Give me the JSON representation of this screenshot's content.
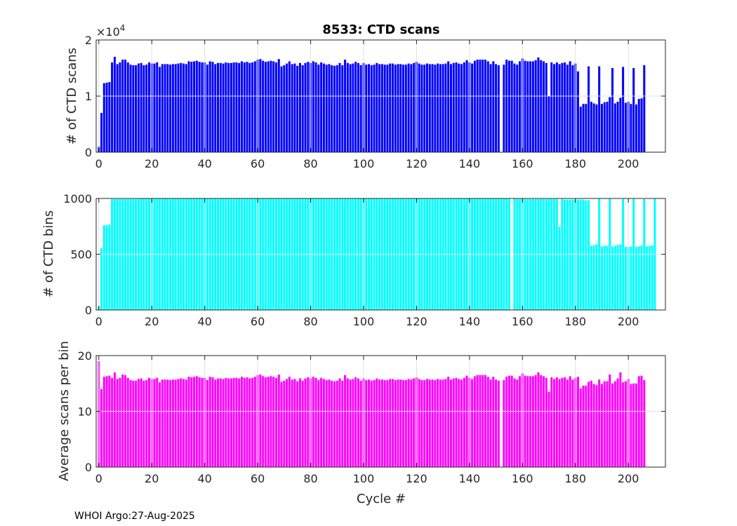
{
  "footer": "WHOI Argo:27-Aug-2025",
  "colors": {
    "axis": "#262626",
    "grid": "#e0e0e0"
  },
  "chart_data": [
    {
      "type": "bar",
      "title": "8533: CTD scans",
      "xlabel": "",
      "ylabel": "# of CTD scans",
      "exponent_label": "×10",
      "exponent_power": "4",
      "color": "#0000ff",
      "xlim": [
        -1,
        214
      ],
      "ylim": [
        0,
        2
      ],
      "xticks": [
        0,
        20,
        40,
        60,
        80,
        100,
        120,
        140,
        160,
        180,
        200
      ],
      "yticks": [
        0,
        1,
        2
      ],
      "grid": true,
      "x_start": 0,
      "values": [
        0.1,
        0.7,
        1.23,
        1.24,
        1.25,
        1.6,
        1.7,
        1.57,
        1.6,
        1.65,
        1.65,
        1.6,
        1.56,
        1.55,
        1.55,
        1.58,
        1.59,
        1.55,
        1.56,
        1.6,
        1.58,
        1.58,
        1.6,
        1.52,
        1.57,
        1.57,
        1.57,
        1.56,
        1.57,
        1.57,
        1.58,
        1.59,
        1.58,
        1.57,
        1.62,
        1.61,
        1.62,
        1.63,
        1.61,
        1.6,
        1.6,
        1.56,
        1.62,
        1.61,
        1.57,
        1.59,
        1.59,
        1.58,
        1.6,
        1.59,
        1.59,
        1.6,
        1.6,
        1.59,
        1.62,
        1.6,
        1.61,
        1.59,
        1.6,
        1.62,
        1.65,
        1.66,
        1.63,
        1.61,
        1.62,
        1.63,
        1.62,
        1.6,
        1.66,
        1.53,
        1.55,
        1.58,
        1.62,
        1.57,
        1.58,
        1.54,
        1.59,
        1.55,
        1.59,
        1.61,
        1.59,
        1.62,
        1.6,
        1.56,
        1.6,
        1.58,
        1.56,
        1.57,
        1.55,
        1.54,
        1.55,
        1.59,
        1.55,
        1.65,
        1.59,
        1.57,
        1.58,
        1.61,
        1.59,
        1.55,
        1.59,
        1.56,
        1.57,
        1.55,
        1.56,
        1.59,
        1.57,
        1.57,
        1.56,
        1.56,
        1.58,
        1.58,
        1.56,
        1.57,
        1.57,
        1.56,
        1.56,
        1.58,
        1.57,
        1.59,
        1.61,
        1.58,
        1.56,
        1.56,
        1.58,
        1.57,
        1.57,
        1.56,
        1.58,
        1.57,
        1.57,
        1.58,
        1.62,
        1.57,
        1.59,
        1.6,
        1.58,
        1.57,
        1.6,
        1.64,
        1.6,
        1.58,
        1.63,
        1.65,
        1.65,
        1.65,
        1.65,
        1.62,
        1.57,
        1.62,
        1.57,
        1.55,
        0,
        1.56,
        1.65,
        1.63,
        1.63,
        1.58,
        1.56,
        1.62,
        1.67,
        1.63,
        1.62,
        1.62,
        1.62,
        1.64,
        1.69,
        1.64,
        1.62,
        1.59,
        1.0,
        1.6,
        1.57,
        1.6,
        1.57,
        1.59,
        1.6,
        1.56,
        1.62,
        1.55,
        1.58,
        1.44,
        0.81,
        0.86,
        0.86,
        1.53,
        0.9,
        0.87,
        0.85,
        1.53,
        0.86,
        0.89,
        0.9,
        0.98,
        1.5,
        0.87,
        0.9,
        0.97,
        1.52,
        0.88,
        0.9,
        0.86,
        1.5,
        0.85,
        0.95,
        0.96,
        1.55
      ]
    },
    {
      "type": "bar",
      "title": "",
      "xlabel": "",
      "ylabel": "# of CTD bins",
      "color": "#00ffff",
      "xlim": [
        -1,
        214
      ],
      "ylim": [
        0,
        1000
      ],
      "xticks": [
        0,
        20,
        40,
        60,
        80,
        100,
        120,
        140,
        160,
        180,
        200
      ],
      "yticks": [
        0,
        500,
        1000
      ],
      "grid": true,
      "x_start": 0,
      "values": [
        30,
        555,
        760,
        760,
        765,
        995,
        995,
        995,
        995,
        995,
        995,
        995,
        995,
        995,
        995,
        995,
        1000,
        1000,
        1000,
        1000,
        1000,
        1000,
        1000,
        1000,
        1000,
        1000,
        1000,
        1000,
        1000,
        1000,
        1000,
        1000,
        1000,
        1000,
        1000,
        1000,
        1000,
        1000,
        1000,
        1000,
        1000,
        1000,
        1000,
        1000,
        1000,
        1000,
        1000,
        1000,
        1000,
        1000,
        1000,
        1000,
        1000,
        1000,
        1000,
        1000,
        1000,
        1000,
        1000,
        1000,
        1000,
        1000,
        1000,
        1000,
        1000,
        1000,
        1000,
        1000,
        1000,
        1000,
        1000,
        1000,
        1000,
        1000,
        1000,
        1000,
        1000,
        1000,
        1000,
        1000,
        1000,
        1000,
        1000,
        1000,
        1000,
        1000,
        1000,
        1000,
        1000,
        1000,
        1000,
        1000,
        1000,
        1000,
        1000,
        1000,
        1000,
        1000,
        1000,
        1000,
        1000,
        1000,
        1000,
        1000,
        1000,
        1000,
        1000,
        1000,
        1000,
        1000,
        1000,
        1000,
        1000,
        1000,
        1000,
        1000,
        1000,
        1000,
        1000,
        1000,
        1000,
        1000,
        1000,
        1000,
        1000,
        1000,
        1000,
        1000,
        1000,
        1000,
        1000,
        1000,
        1000,
        1000,
        1000,
        1000,
        1000,
        1000,
        1000,
        1000,
        1000,
        1000,
        1000,
        1000,
        1000,
        1000,
        1000,
        1000,
        1000,
        1000,
        1000,
        1000,
        1000,
        1000,
        1000,
        1000,
        0,
        1000,
        995,
        995,
        995,
        995,
        995,
        995,
        995,
        995,
        995,
        995,
        995,
        995,
        995,
        995,
        995,
        995,
        745,
        995,
        990,
        990,
        990,
        990,
        990,
        990,
        990,
        990,
        985,
        985,
        575,
        580,
        590,
        1000,
        570,
        575,
        575,
        1000,
        570,
        575,
        585,
        590,
        995,
        565,
        565,
        570,
        1000,
        565,
        570,
        580,
        995,
        570,
        575,
        580,
        1000
      ]
    },
    {
      "type": "bar",
      "title": "",
      "xlabel": "Cycle #",
      "ylabel": "Average scans per bin",
      "color": "#ff00ff",
      "xlim": [
        -1,
        214
      ],
      "ylim": [
        0,
        20
      ],
      "xticks": [
        0,
        20,
        40,
        60,
        80,
        100,
        120,
        140,
        160,
        180,
        200
      ],
      "yticks": [
        0,
        10,
        20
      ],
      "grid": true,
      "x_start": 0,
      "values": [
        19,
        14,
        16.2,
        16.3,
        16.4,
        16,
        17,
        15.8,
        16,
        16.6,
        16.5,
        16,
        15.6,
        15.5,
        15.5,
        15.8,
        15.9,
        15.5,
        15.6,
        16,
        15.8,
        15.8,
        16,
        15.2,
        15.7,
        15.7,
        15.7,
        15.6,
        15.7,
        15.7,
        15.8,
        15.9,
        15.8,
        15.7,
        16.2,
        16.1,
        16.2,
        16.3,
        16.1,
        16,
        16,
        15.6,
        16.2,
        16.1,
        15.7,
        15.9,
        15.9,
        15.8,
        16,
        15.9,
        15.9,
        16,
        16,
        15.9,
        16.2,
        16,
        16.1,
        15.9,
        16,
        16.2,
        16.5,
        16.6,
        16.3,
        16.1,
        16.2,
        16.3,
        16.2,
        16,
        16.6,
        15.3,
        15.5,
        15.8,
        16.2,
        15.7,
        15.8,
        15.4,
        15.9,
        15.5,
        15.9,
        16.1,
        15.9,
        16.2,
        16,
        15.6,
        16,
        15.8,
        15.6,
        15.7,
        15.5,
        15.4,
        15.5,
        15.9,
        15.5,
        16.5,
        15.9,
        15.7,
        15.8,
        16.1,
        15.9,
        15.5,
        15.9,
        15.6,
        15.7,
        15.5,
        15.6,
        15.9,
        15.7,
        15.7,
        15.6,
        15.6,
        15.8,
        15.8,
        15.6,
        15.7,
        15.7,
        15.6,
        15.6,
        15.8,
        15.7,
        15.9,
        16.1,
        15.8,
        15.6,
        15.6,
        15.8,
        15.7,
        15.7,
        15.6,
        15.8,
        15.7,
        15.7,
        15.8,
        16.2,
        15.7,
        15.9,
        16,
        15.8,
        15.7,
        16,
        16.4,
        16,
        15.8,
        16.3,
        16.5,
        16.5,
        16.5,
        16.5,
        16.2,
        15.7,
        16.2,
        15.7,
        15.5,
        0,
        15.6,
        16.2,
        16.4,
        16.4,
        15.9,
        15.7,
        16.3,
        16.8,
        16.4,
        16.3,
        16.3,
        16.3,
        16.5,
        17,
        16.5,
        16.3,
        16,
        13.5,
        16.1,
        15.8,
        16.1,
        15.8,
        16,
        16.1,
        15.7,
        16.3,
        15.7,
        16,
        16.2,
        14.1,
        14.6,
        14.6,
        15.3,
        15.5,
        14.9,
        14.7,
        15.7,
        14.9,
        15.4,
        15.4,
        16.6,
        15.0,
        15.4,
        15.9,
        17.0,
        15.2,
        15.4,
        15.8,
        14.9,
        15.0,
        15.0,
        16.3,
        16.4,
        15.6
      ]
    }
  ]
}
